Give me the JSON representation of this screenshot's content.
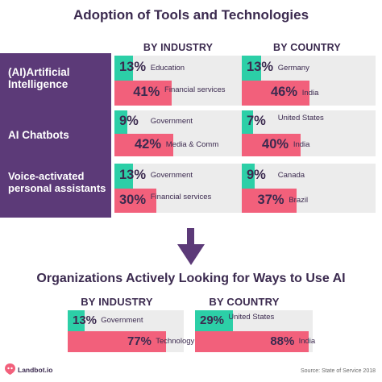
{
  "title_top": "Adoption of Tools and Technologies",
  "title_bottom": "Organizations Actively Looking for Ways to Use AI",
  "col_industry": "BY INDUSTRY",
  "col_country": "BY COUNTRY",
  "col_industry_2": "BY INDUSTRY",
  "col_country_2": "BY COUNTRY",
  "rows": [
    {
      "label": "(AI)Artificial Intelligence"
    },
    {
      "label": "AI Chatbots"
    },
    {
      "label": "Voice-activated personal assistants"
    }
  ],
  "logo": "Landbot.io",
  "source": "Source: State of Service 2018",
  "colors": {
    "purple": "#5c3a78",
    "teal": "#2ccfa7",
    "pink": "#f2607b",
    "card": "#ececec"
  },
  "chart_data": [
    {
      "type": "bar",
      "title": "Adoption of Tools and Technologies",
      "subtitle": "BY INDUSTRY",
      "groups": [
        {
          "name": "(AI)Artificial Intelligence",
          "bars": [
            {
              "value": 13,
              "value_label": "13%",
              "label": "Education"
            },
            {
              "value": 41,
              "value_label": "41%",
              "label": "Financial services"
            }
          ]
        },
        {
          "name": "AI Chatbots",
          "bars": [
            {
              "value": 9,
              "value_label": "9%",
              "label": "Government"
            },
            {
              "value": 42,
              "value_label": "42%",
              "label": "Media & Comm"
            }
          ]
        },
        {
          "name": "Voice-activated personal assistants",
          "bars": [
            {
              "value": 13,
              "value_label": "13%",
              "label": "Government"
            },
            {
              "value": 30,
              "value_label": "30%",
              "label": "Financial services"
            }
          ]
        }
      ]
    },
    {
      "type": "bar",
      "title": "Adoption of Tools and Technologies",
      "subtitle": "BY COUNTRY",
      "groups": [
        {
          "name": "(AI)Artificial Intelligence",
          "bars": [
            {
              "value": 13,
              "value_label": "13%",
              "label": "Germany"
            },
            {
              "value": 46,
              "value_label": "46%",
              "label": "India"
            }
          ]
        },
        {
          "name": "AI Chatbots",
          "bars": [
            {
              "value": 7,
              "value_label": "7%",
              "label": "United States"
            },
            {
              "value": 40,
              "value_label": "40%",
              "label": "India"
            }
          ]
        },
        {
          "name": "Voice-activated personal assistants",
          "bars": [
            {
              "value": 9,
              "value_label": "9%",
              "label": "Canada"
            },
            {
              "value": 37,
              "value_label": "37%",
              "label": "Brazil"
            }
          ]
        }
      ]
    },
    {
      "type": "bar",
      "title": "Organizations Actively Looking for Ways to Use AI",
      "subtitle": "BY INDUSTRY",
      "groups": [
        {
          "name": "",
          "bars": [
            {
              "value": 13,
              "value_label": "13%",
              "label": "Government"
            },
            {
              "value": 77,
              "value_label": "77%",
              "label": "Technology"
            }
          ]
        }
      ]
    },
    {
      "type": "bar",
      "title": "Organizations Actively Looking for Ways to Use AI",
      "subtitle": "BY COUNTRY",
      "groups": [
        {
          "name": "",
          "bars": [
            {
              "value": 29,
              "value_label": "29%",
              "label": "United States"
            },
            {
              "value": 88,
              "value_label": "88%",
              "label": "India"
            }
          ]
        }
      ]
    }
  ]
}
